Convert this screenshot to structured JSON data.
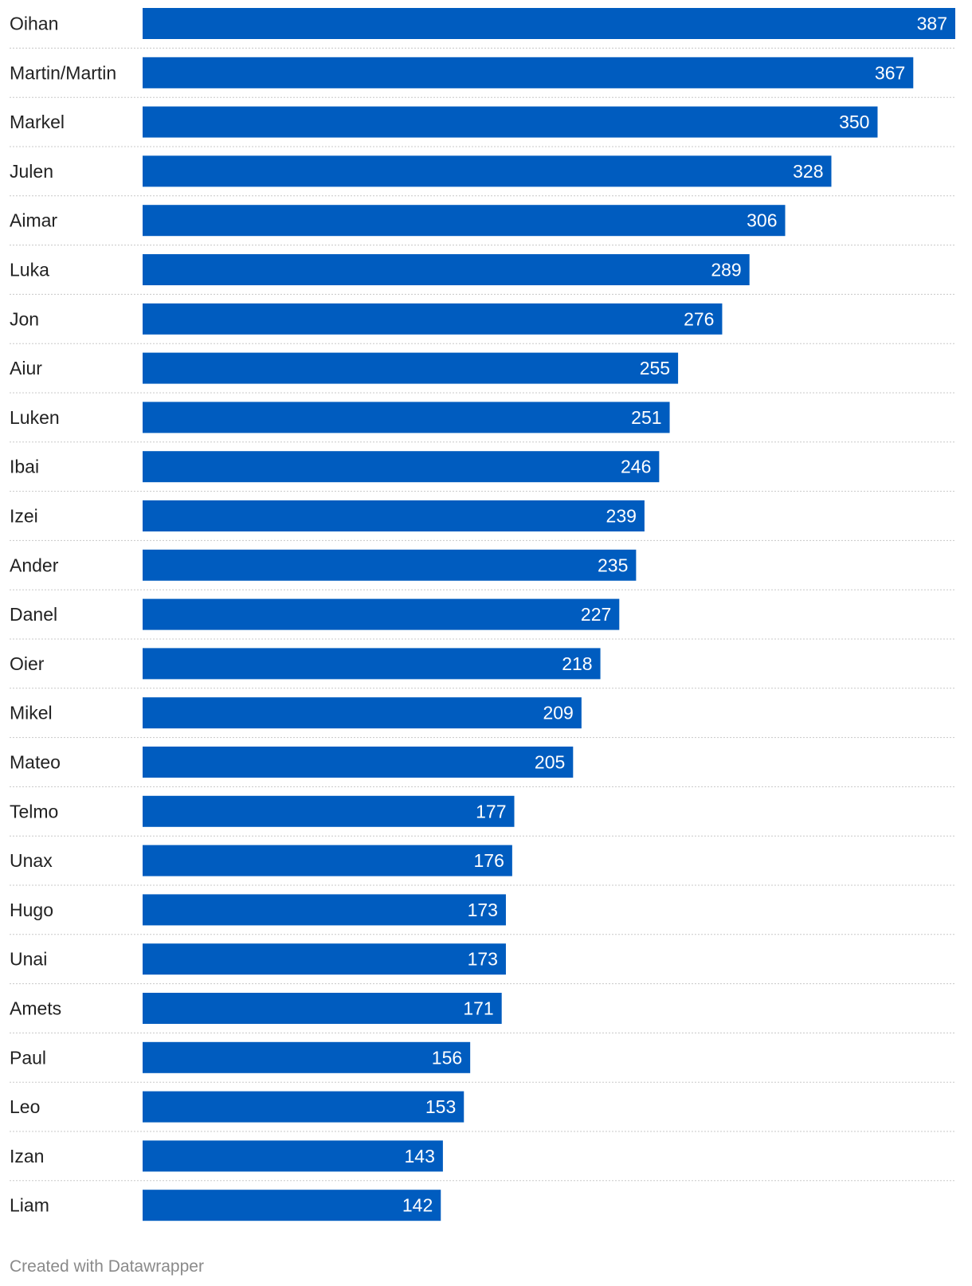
{
  "chart_data": {
    "type": "bar",
    "orientation": "horizontal",
    "categories": [
      "Oihan",
      "Martin/Martin",
      "Markel",
      "Julen",
      "Aimar",
      "Luka",
      "Jon",
      "Aiur",
      "Luken",
      "Ibai",
      "Izei",
      "Ander",
      "Danel",
      "Oier",
      "Mikel",
      "Mateo",
      "Telmo",
      "Unax",
      "Hugo",
      "Unai",
      "Amets",
      "Paul",
      "Leo",
      "Izan",
      "Liam"
    ],
    "values": [
      387,
      367,
      350,
      328,
      306,
      289,
      276,
      255,
      251,
      246,
      239,
      235,
      227,
      218,
      209,
      205,
      177,
      176,
      173,
      173,
      171,
      156,
      153,
      143,
      142
    ],
    "xlim": [
      0,
      387
    ],
    "grid": false,
    "bar_color": "#005cbf",
    "data_labels": "inside-end"
  },
  "footer": {
    "credit": "Created with Datawrapper"
  }
}
